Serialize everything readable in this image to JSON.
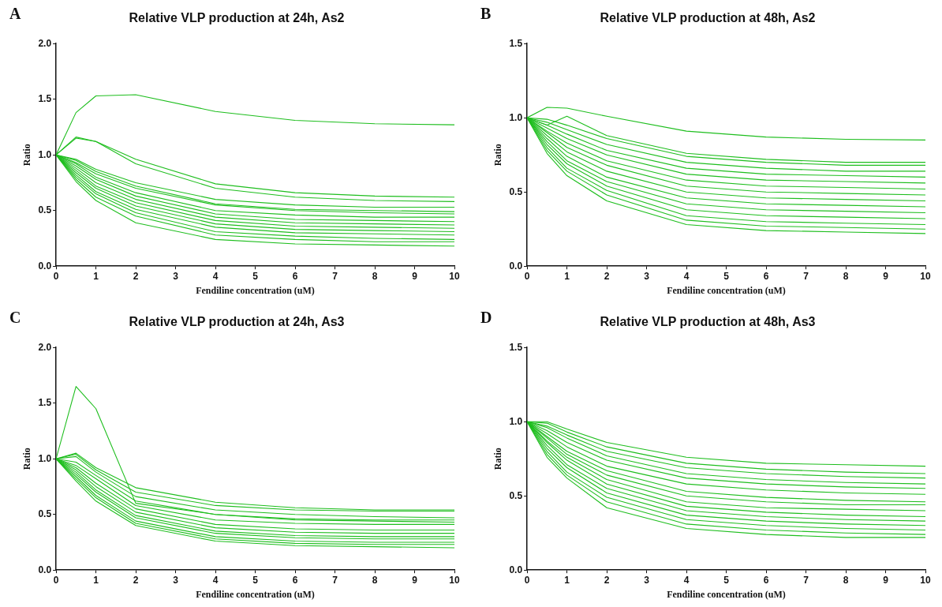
{
  "chart_data": [
    {
      "type": "line",
      "title": "Relative VLP production at 24h, As2",
      "xlabel": "Fendiline concentration (uM)",
      "ylabel": "Ratio",
      "annotations": [
        "A"
      ],
      "grid": false,
      "legend": false,
      "marker": "none",
      "line_style": "solid",
      "xlim": [
        0,
        10
      ],
      "xticks": [
        0,
        1,
        2,
        3,
        4,
        5,
        6,
        7,
        8,
        9,
        10
      ],
      "ylim": [
        0,
        2
      ],
      "yticks": [
        {
          "value": 0,
          "label": "0.0"
        },
        {
          "value": 0.5,
          "label": "0.5"
        },
        {
          "value": 1,
          "label": "1.0"
        },
        {
          "value": 1.5,
          "label": "1.5"
        },
        {
          "value": 2,
          "label": "2.0"
        }
      ],
      "x": [
        0,
        0.5,
        1,
        2,
        4,
        6,
        8,
        10
      ],
      "series": [
        {
          "color": "#1ebe1e",
          "values": [
            1,
            1.38,
            1.53,
            1.54,
            1.39,
            1.31,
            1.28,
            1.27
          ]
        },
        {
          "color": "#1ebe1e",
          "values": [
            1,
            1.16,
            1.12,
            0.96,
            0.74,
            0.66,
            0.63,
            0.62
          ]
        },
        {
          "color": "#1ebe1e",
          "values": [
            1,
            1.15,
            1.12,
            0.92,
            0.7,
            0.62,
            0.59,
            0.58
          ]
        },
        {
          "color": "#1ebe1e",
          "values": [
            1,
            0.96,
            0.87,
            0.75,
            0.6,
            0.55,
            0.53,
            0.53
          ]
        },
        {
          "color": "#1ebe1e",
          "values": [
            1,
            0.95,
            0.85,
            0.72,
            0.56,
            0.51,
            0.5,
            0.49
          ]
        },
        {
          "color": "#1ebe1e",
          "values": [
            1,
            0.93,
            0.83,
            0.7,
            0.55,
            0.5,
            0.48,
            0.47
          ]
        },
        {
          "color": "#1ebe1e",
          "values": [
            1,
            0.92,
            0.8,
            0.66,
            0.5,
            0.46,
            0.44,
            0.44
          ]
        },
        {
          "color": "#1ebe1e",
          "values": [
            1,
            0.9,
            0.78,
            0.63,
            0.47,
            0.42,
            0.41,
            0.4
          ]
        },
        {
          "color": "#1ebe1e",
          "values": [
            1,
            0.88,
            0.75,
            0.6,
            0.44,
            0.39,
            0.38,
            0.37
          ]
        },
        {
          "color": "#1ebe1e",
          "values": [
            1,
            0.86,
            0.72,
            0.57,
            0.41,
            0.36,
            0.35,
            0.34
          ]
        },
        {
          "color": "#1ebe1e",
          "values": [
            1,
            0.84,
            0.7,
            0.54,
            0.38,
            0.33,
            0.32,
            0.31
          ]
        },
        {
          "color": "#1ebe1e",
          "values": [
            1,
            0.82,
            0.67,
            0.51,
            0.35,
            0.3,
            0.29,
            0.28
          ]
        },
        {
          "color": "#1ebe1e",
          "values": [
            1,
            0.8,
            0.65,
            0.48,
            0.31,
            0.27,
            0.25,
            0.24
          ]
        },
        {
          "color": "#1ebe1e",
          "values": [
            1,
            0.78,
            0.62,
            0.45,
            0.28,
            0.24,
            0.22,
            0.22
          ]
        },
        {
          "color": "#1ebe1e",
          "values": [
            1,
            0.76,
            0.59,
            0.39,
            0.24,
            0.2,
            0.19,
            0.18
          ]
        }
      ]
    },
    {
      "type": "line",
      "title": "Relative VLP production at 48h, As2",
      "xlabel": "Fendiline concentration (uM)",
      "ylabel": "Ratio",
      "annotations": [
        "B"
      ],
      "grid": false,
      "legend": false,
      "marker": "none",
      "line_style": "solid",
      "xlim": [
        0,
        10
      ],
      "xticks": [
        0,
        1,
        2,
        3,
        4,
        5,
        6,
        7,
        8,
        9,
        10
      ],
      "ylim": [
        0,
        1.5
      ],
      "yticks": [
        {
          "value": 0,
          "label": "0.0"
        },
        {
          "value": 0.5,
          "label": "0.5"
        },
        {
          "value": 1,
          "label": "1.0"
        },
        {
          "value": 1.5,
          "label": "1.5"
        }
      ],
      "x": [
        0,
        0.5,
        1,
        2,
        4,
        6,
        8,
        10
      ],
      "series": [
        {
          "color": "#1ebe1e",
          "values": [
            1,
            1.07,
            1.065,
            1.01,
            0.91,
            0.87,
            0.855,
            0.85
          ]
        },
        {
          "color": "#1ebe1e",
          "values": [
            1,
            0.95,
            1.01,
            0.88,
            0.76,
            0.72,
            0.7,
            0.7
          ]
        },
        {
          "color": "#1ebe1e",
          "values": [
            1,
            0.99,
            0.95,
            0.86,
            0.74,
            0.7,
            0.68,
            0.68
          ]
        },
        {
          "color": "#1ebe1e",
          "values": [
            1,
            0.97,
            0.92,
            0.82,
            0.7,
            0.66,
            0.64,
            0.64
          ]
        },
        {
          "color": "#1ebe1e",
          "values": [
            1,
            0.95,
            0.89,
            0.78,
            0.66,
            0.62,
            0.61,
            0.6
          ]
        },
        {
          "color": "#1ebe1e",
          "values": [
            1,
            0.93,
            0.86,
            0.75,
            0.62,
            0.58,
            0.57,
            0.56
          ]
        },
        {
          "color": "#1ebe1e",
          "values": [
            1,
            0.91,
            0.83,
            0.71,
            0.58,
            0.54,
            0.53,
            0.52
          ]
        },
        {
          "color": "#1ebe1e",
          "values": [
            1,
            0.9,
            0.8,
            0.68,
            0.54,
            0.5,
            0.49,
            0.48
          ]
        },
        {
          "color": "#1ebe1e",
          "values": [
            1,
            0.88,
            0.77,
            0.64,
            0.5,
            0.46,
            0.45,
            0.44
          ]
        },
        {
          "color": "#1ebe1e",
          "values": [
            1,
            0.86,
            0.74,
            0.6,
            0.46,
            0.42,
            0.41,
            0.4
          ]
        },
        {
          "color": "#1ebe1e",
          "values": [
            1,
            0.84,
            0.71,
            0.57,
            0.42,
            0.38,
            0.37,
            0.36
          ]
        },
        {
          "color": "#1ebe1e",
          "values": [
            1,
            0.82,
            0.69,
            0.54,
            0.38,
            0.34,
            0.33,
            0.32
          ]
        },
        {
          "color": "#1ebe1e",
          "values": [
            1,
            0.8,
            0.66,
            0.51,
            0.34,
            0.3,
            0.29,
            0.28
          ]
        },
        {
          "color": "#1ebe1e",
          "values": [
            1,
            0.78,
            0.64,
            0.48,
            0.31,
            0.27,
            0.26,
            0.25
          ]
        },
        {
          "color": "#1ebe1e",
          "values": [
            1,
            0.76,
            0.61,
            0.44,
            0.28,
            0.24,
            0.23,
            0.22
          ]
        }
      ]
    },
    {
      "type": "line",
      "title": "Relative VLP production at 24h, As3",
      "xlabel": "Fendiline concentration (uM)",
      "ylabel": "Ratio",
      "annotations": [
        "C"
      ],
      "grid": false,
      "legend": false,
      "marker": "none",
      "line_style": "solid",
      "xlim": [
        0,
        10
      ],
      "xticks": [
        0,
        1,
        2,
        3,
        4,
        5,
        6,
        7,
        8,
        9,
        10
      ],
      "ylim": [
        0,
        2
      ],
      "yticks": [
        {
          "value": 0,
          "label": "0.0"
        },
        {
          "value": 0.5,
          "label": "0.5"
        },
        {
          "value": 1,
          "label": "1.0"
        },
        {
          "value": 1.5,
          "label": "1.5"
        },
        {
          "value": 2,
          "label": "2.0"
        }
      ],
      "x": [
        0,
        0.5,
        1,
        2,
        4,
        6,
        8,
        10
      ],
      "series": [
        {
          "color": "#1ebe1e",
          "values": [
            1,
            1.65,
            1.45,
            0.6,
            0.5,
            0.45,
            0.44,
            0.43
          ]
        },
        {
          "color": "#1ebe1e",
          "values": [
            1,
            1.05,
            0.92,
            0.74,
            0.61,
            0.56,
            0.54,
            0.54
          ]
        },
        {
          "color": "#1ebe1e",
          "values": [
            1,
            1.04,
            0.9,
            0.7,
            0.58,
            0.54,
            0.53,
            0.53
          ]
        },
        {
          "color": "#1ebe1e",
          "values": [
            1,
            1.02,
            0.88,
            0.66,
            0.54,
            0.5,
            0.48,
            0.47
          ]
        },
        {
          "color": "#1ebe1e",
          "values": [
            1,
            0.97,
            0.85,
            0.62,
            0.5,
            0.46,
            0.45,
            0.45
          ]
        },
        {
          "color": "#1ebe1e",
          "values": [
            1,
            0.94,
            0.82,
            0.58,
            0.45,
            0.42,
            0.41,
            0.41
          ]
        },
        {
          "color": "#1ebe1e",
          "values": [
            1,
            0.92,
            0.78,
            0.55,
            0.41,
            0.37,
            0.36,
            0.36
          ]
        },
        {
          "color": "#1ebe1e",
          "values": [
            1,
            0.9,
            0.75,
            0.52,
            0.38,
            0.34,
            0.33,
            0.33
          ]
        },
        {
          "color": "#1ebe1e",
          "values": [
            1,
            0.88,
            0.72,
            0.49,
            0.35,
            0.31,
            0.3,
            0.3
          ]
        },
        {
          "color": "#1ebe1e",
          "values": [
            1,
            0.86,
            0.7,
            0.47,
            0.33,
            0.29,
            0.28,
            0.28
          ]
        },
        {
          "color": "#1ebe1e",
          "values": [
            1,
            0.84,
            0.67,
            0.44,
            0.3,
            0.26,
            0.25,
            0.25
          ]
        },
        {
          "color": "#1ebe1e",
          "values": [
            1,
            0.82,
            0.65,
            0.42,
            0.28,
            0.24,
            0.23,
            0.23
          ]
        },
        {
          "color": "#1ebe1e",
          "values": [
            1,
            0.8,
            0.62,
            0.4,
            0.26,
            0.22,
            0.21,
            0.2
          ]
        }
      ]
    },
    {
      "type": "line",
      "title": "Relative VLP production at 48h, As3",
      "xlabel": "Fendiline concentration (uM)",
      "ylabel": "Ratio",
      "annotations": [
        "D"
      ],
      "grid": false,
      "legend": false,
      "marker": "none",
      "line_style": "solid",
      "xlim": [
        0,
        10
      ],
      "xticks": [
        0,
        1,
        2,
        3,
        4,
        5,
        6,
        7,
        8,
        9,
        10
      ],
      "ylim": [
        0,
        1.5
      ],
      "yticks": [
        {
          "value": 0,
          "label": "0.0"
        },
        {
          "value": 0.5,
          "label": "0.5"
        },
        {
          "value": 1,
          "label": "1.0"
        },
        {
          "value": 1.5,
          "label": "1.5"
        }
      ],
      "x": [
        0,
        0.5,
        1,
        2,
        4,
        6,
        8,
        10
      ],
      "series": [
        {
          "color": "#1ebe1e",
          "values": [
            1,
            1,
            0.95,
            0.86,
            0.76,
            0.72,
            0.71,
            0.7
          ]
        },
        {
          "color": "#1ebe1e",
          "values": [
            1,
            0.99,
            0.93,
            0.83,
            0.72,
            0.68,
            0.66,
            0.65
          ]
        },
        {
          "color": "#1ebe1e",
          "values": [
            1,
            0.97,
            0.91,
            0.8,
            0.69,
            0.65,
            0.63,
            0.62
          ]
        },
        {
          "color": "#1ebe1e",
          "values": [
            1,
            0.96,
            0.89,
            0.77,
            0.65,
            0.61,
            0.59,
            0.58
          ]
        },
        {
          "color": "#1ebe1e",
          "values": [
            1,
            0.94,
            0.86,
            0.74,
            0.62,
            0.58,
            0.56,
            0.55
          ]
        },
        {
          "color": "#1ebe1e",
          "values": [
            1,
            0.92,
            0.83,
            0.7,
            0.58,
            0.54,
            0.52,
            0.51
          ]
        },
        {
          "color": "#1ebe1e",
          "values": [
            1,
            0.9,
            0.8,
            0.67,
            0.53,
            0.49,
            0.47,
            0.46
          ]
        },
        {
          "color": "#1ebe1e",
          "values": [
            1,
            0.89,
            0.78,
            0.64,
            0.5,
            0.46,
            0.44,
            0.44
          ]
        },
        {
          "color": "#1ebe1e",
          "values": [
            1,
            0.87,
            0.76,
            0.61,
            0.46,
            0.42,
            0.41,
            0.4
          ]
        },
        {
          "color": "#1ebe1e",
          "values": [
            1,
            0.86,
            0.74,
            0.58,
            0.43,
            0.39,
            0.37,
            0.36
          ]
        },
        {
          "color": "#1ebe1e",
          "values": [
            1,
            0.84,
            0.71,
            0.55,
            0.4,
            0.36,
            0.34,
            0.33
          ]
        },
        {
          "color": "#1ebe1e",
          "values": [
            1,
            0.82,
            0.69,
            0.52,
            0.37,
            0.33,
            0.31,
            0.3
          ]
        },
        {
          "color": "#1ebe1e",
          "values": [
            1,
            0.8,
            0.66,
            0.49,
            0.34,
            0.3,
            0.28,
            0.27
          ]
        },
        {
          "color": "#1ebe1e",
          "values": [
            1,
            0.78,
            0.64,
            0.46,
            0.31,
            0.27,
            0.25,
            0.24
          ]
        },
        {
          "color": "#1ebe1e",
          "values": [
            1,
            0.76,
            0.62,
            0.42,
            0.28,
            0.24,
            0.22,
            0.22
          ]
        }
      ]
    }
  ]
}
